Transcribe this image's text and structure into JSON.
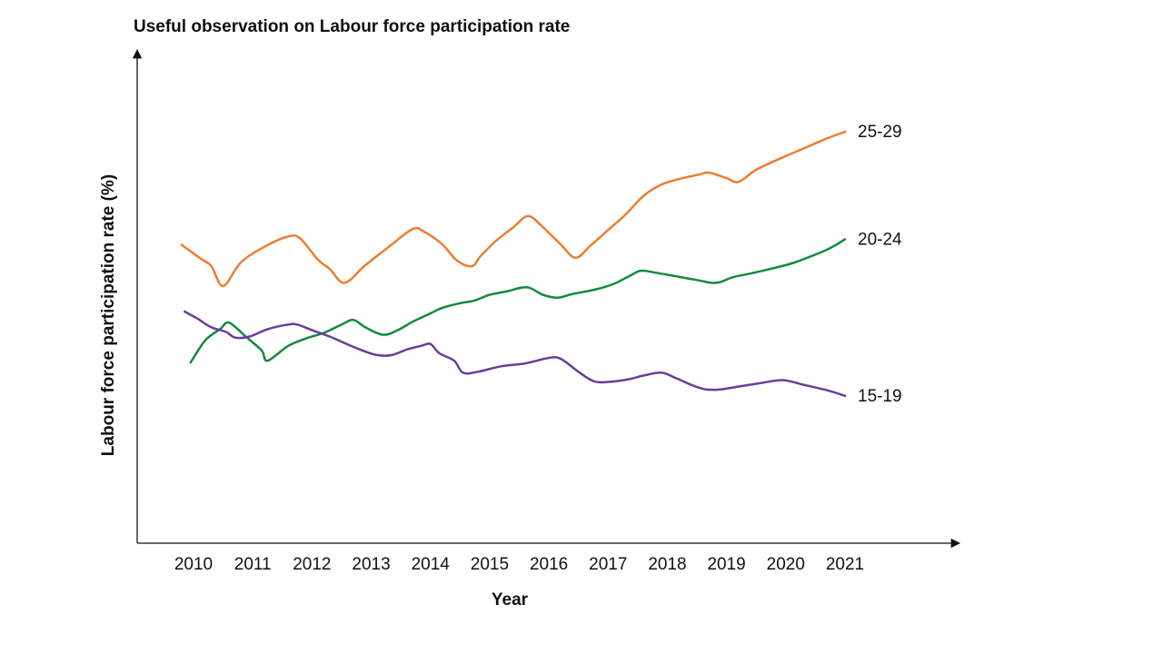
{
  "chart_data": {
    "type": "line",
    "title": "Useful observation on Labour force participation rate",
    "xlabel": "Year",
    "ylabel": "Labour force participation rate (%)",
    "x_ticks": [
      "2010",
      "2011",
      "2012",
      "2013",
      "2014",
      "2015",
      "2016",
      "2017",
      "2018",
      "2019",
      "2020",
      "2021"
    ],
    "y_ticks": [],
    "grid": false,
    "legend": "none",
    "series": [
      {
        "name": "25-29",
        "color": "#ED7D31",
        "points": [
          [
            2009.8,
            64.4
          ],
          [
            2010.1,
            61.6
          ],
          [
            2010.3,
            59.8
          ],
          [
            2010.5,
            55.5
          ],
          [
            2010.8,
            60.6
          ],
          [
            2011.2,
            64.0
          ],
          [
            2011.6,
            66.2
          ],
          [
            2011.8,
            65.8
          ],
          [
            2012.1,
            61.2
          ],
          [
            2012.3,
            59.2
          ],
          [
            2012.55,
            56.2
          ],
          [
            2012.9,
            60.0
          ],
          [
            2013.3,
            64.0
          ],
          [
            2013.7,
            67.8
          ],
          [
            2013.9,
            67.2
          ],
          [
            2014.2,
            64.5
          ],
          [
            2014.45,
            61.0
          ],
          [
            2014.7,
            59.8
          ],
          [
            2014.85,
            62.0
          ],
          [
            2015.1,
            65.2
          ],
          [
            2015.4,
            68.2
          ],
          [
            2015.65,
            70.6
          ],
          [
            2015.9,
            68.2
          ],
          [
            2016.2,
            64.5
          ],
          [
            2016.45,
            61.6
          ],
          [
            2016.7,
            64.2
          ],
          [
            2017.0,
            67.6
          ],
          [
            2017.3,
            71.0
          ],
          [
            2017.6,
            75.0
          ],
          [
            2017.9,
            77.4
          ],
          [
            2018.2,
            78.6
          ],
          [
            2018.55,
            79.6
          ],
          [
            2018.7,
            80.0
          ],
          [
            2019.0,
            78.8
          ],
          [
            2019.2,
            78.0
          ],
          [
            2019.5,
            80.6
          ],
          [
            2019.9,
            83.0
          ],
          [
            2020.3,
            85.2
          ],
          [
            2020.7,
            87.4
          ],
          [
            2021.0,
            88.8
          ]
        ]
      },
      {
        "name": "20-24",
        "color": "#138A3E",
        "points": [
          [
            2009.95,
            39.0
          ],
          [
            2010.2,
            43.8
          ],
          [
            2010.45,
            46.2
          ],
          [
            2010.6,
            47.6
          ],
          [
            2010.9,
            44.4
          ],
          [
            2011.15,
            41.6
          ],
          [
            2011.25,
            39.4
          ],
          [
            2011.6,
            42.6
          ],
          [
            2011.9,
            44.2
          ],
          [
            2012.2,
            45.4
          ],
          [
            2012.5,
            47.2
          ],
          [
            2012.7,
            48.2
          ],
          [
            2012.9,
            46.6
          ],
          [
            2013.2,
            45.0
          ],
          [
            2013.45,
            46.0
          ],
          [
            2013.7,
            47.8
          ],
          [
            2014.0,
            49.6
          ],
          [
            2014.2,
            50.8
          ],
          [
            2014.5,
            51.8
          ],
          [
            2014.75,
            52.4
          ],
          [
            2015.0,
            53.6
          ],
          [
            2015.3,
            54.4
          ],
          [
            2015.55,
            55.2
          ],
          [
            2015.7,
            55.0
          ],
          [
            2015.9,
            53.6
          ],
          [
            2016.15,
            53.0
          ],
          [
            2016.4,
            53.8
          ],
          [
            2016.8,
            54.8
          ],
          [
            2017.1,
            56.0
          ],
          [
            2017.35,
            57.6
          ],
          [
            2017.55,
            58.8
          ],
          [
            2017.8,
            58.4
          ],
          [
            2018.15,
            57.6
          ],
          [
            2018.5,
            56.8
          ],
          [
            2018.75,
            56.2
          ],
          [
            2018.9,
            56.4
          ],
          [
            2019.1,
            57.4
          ],
          [
            2019.4,
            58.2
          ],
          [
            2019.8,
            59.4
          ],
          [
            2020.1,
            60.4
          ],
          [
            2020.4,
            61.8
          ],
          [
            2020.7,
            63.4
          ],
          [
            2020.9,
            64.8
          ],
          [
            2021.0,
            65.6
          ]
        ]
      },
      {
        "name": "15-19",
        "color": "#6A3D9A",
        "points": [
          [
            2009.85,
            50.0
          ],
          [
            2010.05,
            48.6
          ],
          [
            2010.3,
            46.6
          ],
          [
            2010.55,
            45.6
          ],
          [
            2010.7,
            44.4
          ],
          [
            2010.95,
            44.6
          ],
          [
            2011.25,
            46.2
          ],
          [
            2011.6,
            47.2
          ],
          [
            2011.75,
            47.2
          ],
          [
            2012.0,
            46.0
          ],
          [
            2012.3,
            44.6
          ],
          [
            2012.55,
            43.2
          ],
          [
            2012.85,
            41.6
          ],
          [
            2013.1,
            40.6
          ],
          [
            2013.35,
            40.6
          ],
          [
            2013.6,
            41.8
          ],
          [
            2013.85,
            42.6
          ],
          [
            2014.0,
            43.0
          ],
          [
            2014.15,
            41.0
          ],
          [
            2014.4,
            39.4
          ],
          [
            2014.55,
            36.8
          ],
          [
            2014.8,
            37.0
          ],
          [
            2015.2,
            38.2
          ],
          [
            2015.6,
            38.8
          ],
          [
            2016.0,
            40.0
          ],
          [
            2016.2,
            39.8
          ],
          [
            2016.5,
            37.0
          ],
          [
            2016.75,
            35.0
          ],
          [
            2017.0,
            34.8
          ],
          [
            2017.35,
            35.4
          ],
          [
            2017.6,
            36.2
          ],
          [
            2017.9,
            36.8
          ],
          [
            2018.15,
            35.6
          ],
          [
            2018.4,
            34.2
          ],
          [
            2018.65,
            33.2
          ],
          [
            2018.9,
            33.2
          ],
          [
            2019.2,
            33.8
          ],
          [
            2019.6,
            34.6
          ],
          [
            2019.95,
            35.2
          ],
          [
            2020.3,
            34.2
          ],
          [
            2020.7,
            33.0
          ],
          [
            2021.0,
            31.8
          ]
        ]
      }
    ]
  }
}
